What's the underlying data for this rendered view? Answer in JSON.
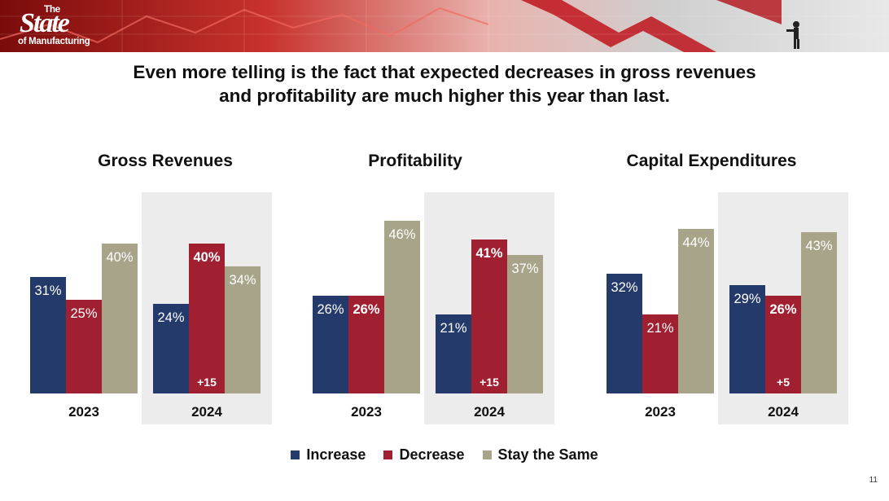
{
  "logo": {
    "line1": "The",
    "line2": "State",
    "line3": "of Manufacturing"
  },
  "headline": {
    "line1": "Even more telling is the fact that expected decreases in gross revenues",
    "line2": "and profitability are much higher this year than last."
  },
  "colors": {
    "increase": "#243a6b",
    "decrease": "#a01f30",
    "stay": "#a8a48a",
    "panel": "#ececec"
  },
  "legend": [
    {
      "label": "Increase",
      "color": "#243a6b"
    },
    {
      "label": "Decrease",
      "color": "#a01f30"
    },
    {
      "label": "Stay the Same",
      "color": "#a8a48a"
    }
  ],
  "page_number": "11",
  "chart_data": [
    {
      "type": "bar",
      "title": "Gross Revenues",
      "categories": [
        "2023",
        "2024"
      ],
      "series": [
        {
          "name": "Increase",
          "values": [
            31,
            24
          ],
          "labels": [
            "31%",
            "24%"
          ]
        },
        {
          "name": "Decrease",
          "values": [
            25,
            40
          ],
          "labels": [
            "25%",
            "40%"
          ]
        },
        {
          "name": "Stay the Same",
          "values": [
            40,
            34
          ],
          "labels": [
            "40%",
            "34%"
          ]
        }
      ],
      "annotations": [
        {
          "category": "2024",
          "series": "Decrease",
          "text": "+15"
        }
      ],
      "ylim": [
        0,
        60
      ]
    },
    {
      "type": "bar",
      "title": "Profitability",
      "categories": [
        "2023",
        "2024"
      ],
      "series": [
        {
          "name": "Increase",
          "values": [
            26,
            21
          ],
          "labels": [
            "26%",
            "21%"
          ]
        },
        {
          "name": "Decrease",
          "values": [
            26,
            41
          ],
          "labels": [
            "26%",
            "41%"
          ]
        },
        {
          "name": "Stay the Same",
          "values": [
            46,
            37
          ],
          "labels": [
            "46%",
            "37%"
          ]
        }
      ],
      "annotations": [
        {
          "category": "2024",
          "series": "Decrease",
          "text": "+15"
        }
      ],
      "ylim": [
        0,
        60
      ]
    },
    {
      "type": "bar",
      "title": "Capital Expenditures",
      "categories": [
        "2023",
        "2024"
      ],
      "series": [
        {
          "name": "Increase",
          "values": [
            32,
            29
          ],
          "labels": [
            "32%",
            "29%"
          ]
        },
        {
          "name": "Decrease",
          "values": [
            21,
            26
          ],
          "labels": [
            "21%",
            "26%"
          ]
        },
        {
          "name": "Stay the Same",
          "values": [
            44,
            43
          ],
          "labels": [
            "44%",
            "43%"
          ]
        }
      ],
      "annotations": [
        {
          "category": "2024",
          "series": "Decrease",
          "text": "+5"
        }
      ],
      "ylim": [
        0,
        60
      ]
    }
  ]
}
